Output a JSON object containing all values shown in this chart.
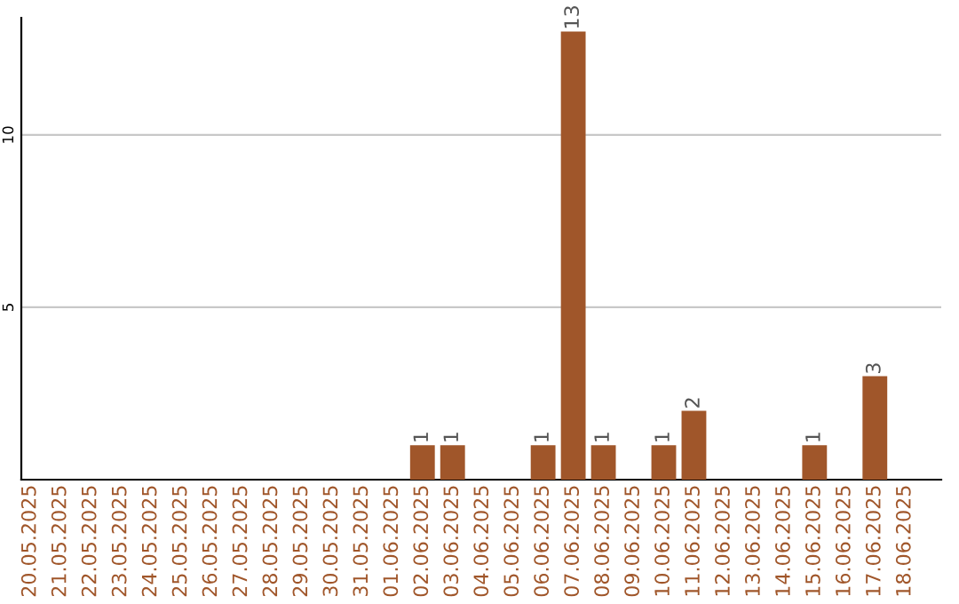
{
  "chart_data": {
    "type": "bar",
    "categories": [
      "20.05.2025",
      "21.05.2025",
      "22.05.2025",
      "23.05.2025",
      "24.05.2025",
      "25.05.2025",
      "26.05.2025",
      "27.05.2025",
      "28.05.2025",
      "29.05.2025",
      "30.05.2025",
      "31.05.2025",
      "01.06.2025",
      "02.06.2025",
      "03.06.2025",
      "04.06.2025",
      "05.06.2025",
      "06.06.2025",
      "07.06.2025",
      "08.06.2025",
      "09.06.2025",
      "10.06.2025",
      "11.06.2025",
      "12.06.2025",
      "13.06.2025",
      "14.06.2025",
      "15.06.2025",
      "16.06.2025",
      "17.06.2025",
      "18.06.2025"
    ],
    "values": [
      0,
      0,
      0,
      0,
      0,
      0,
      0,
      0,
      0,
      0,
      0,
      0,
      0,
      1,
      1,
      0,
      0,
      1,
      13,
      1,
      0,
      1,
      2,
      0,
      0,
      0,
      1,
      0,
      3,
      0
    ],
    "value_labels": [
      null,
      null,
      null,
      null,
      null,
      null,
      null,
      null,
      null,
      null,
      null,
      null,
      null,
      "1",
      "1",
      null,
      null,
      "1",
      "13",
      "1",
      null,
      "1",
      "2",
      null,
      null,
      null,
      "1",
      null,
      "3",
      null
    ],
    "color": "#a0562a",
    "ylim": [
      0,
      13.4
    ],
    "yticks": [
      5,
      10
    ],
    "grid": "y",
    "legend": false
  }
}
